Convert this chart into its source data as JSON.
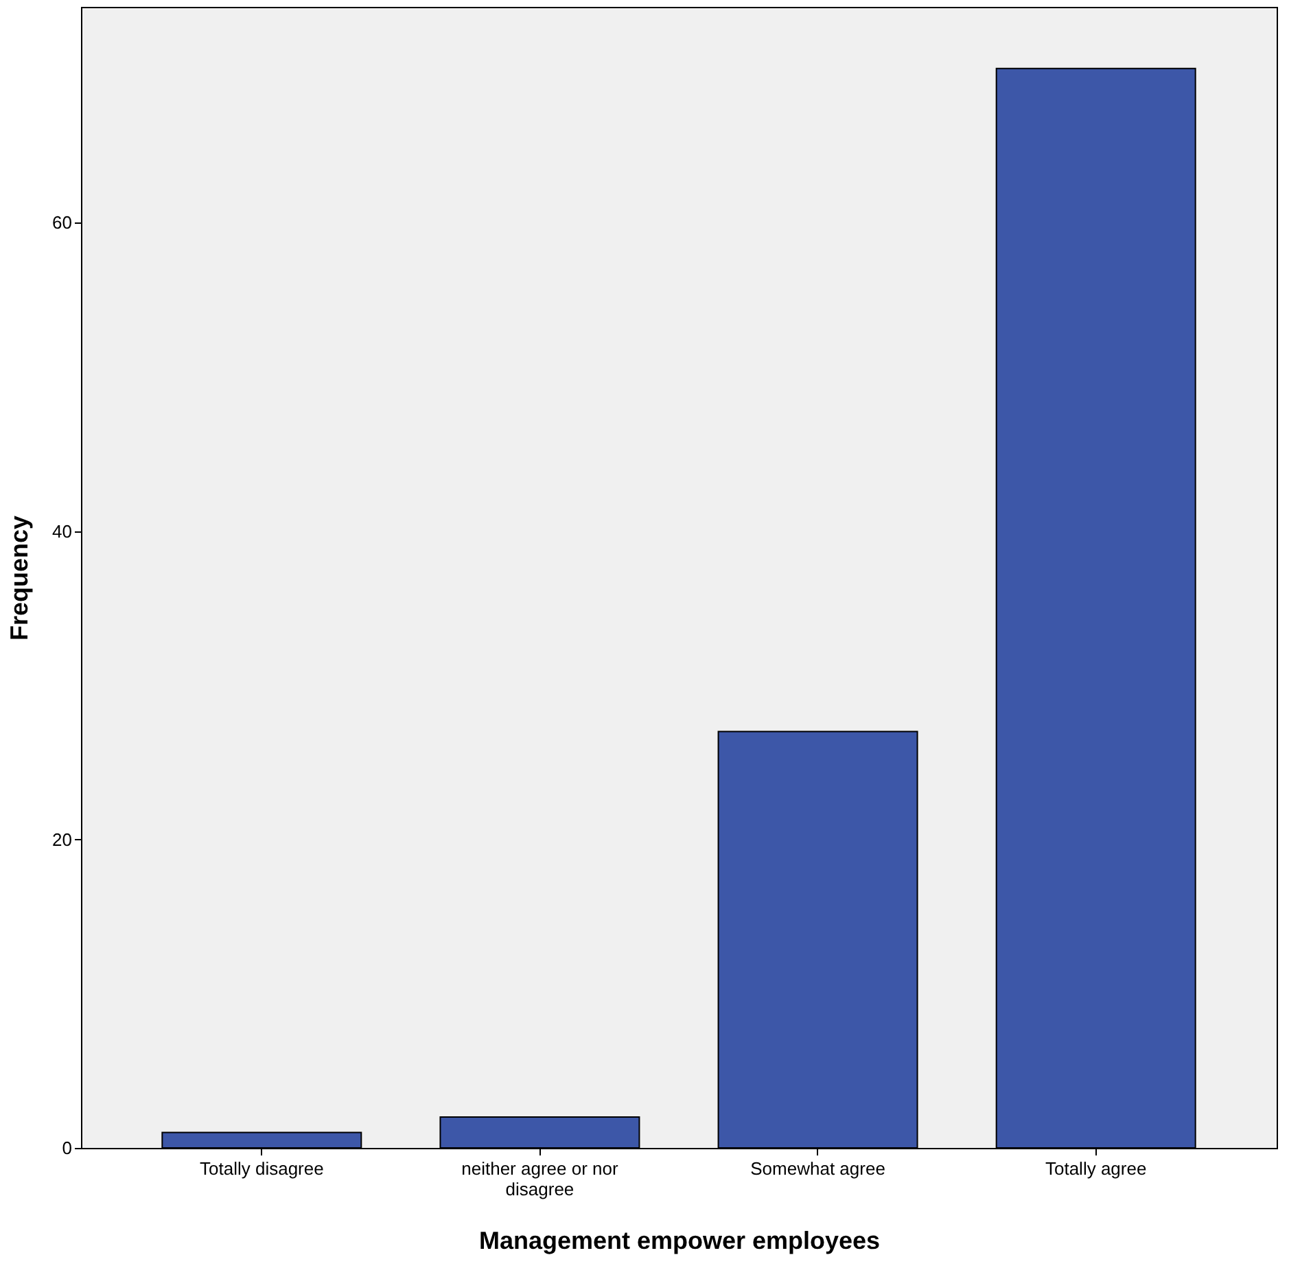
{
  "chart_data": {
    "type": "bar",
    "xlabel": "Management empower employees",
    "ylabel": "Frequency",
    "categories": [
      "Totally disagree",
      "neither agree or nor disagree",
      "Somewhat agree",
      "Totally agree"
    ],
    "values": [
      1,
      2,
      27,
      70
    ],
    "color": "#3d57a8",
    "ylim": [
      0,
      74
    ],
    "yticks": [
      0,
      20,
      40,
      60
    ],
    "grid": false
  }
}
